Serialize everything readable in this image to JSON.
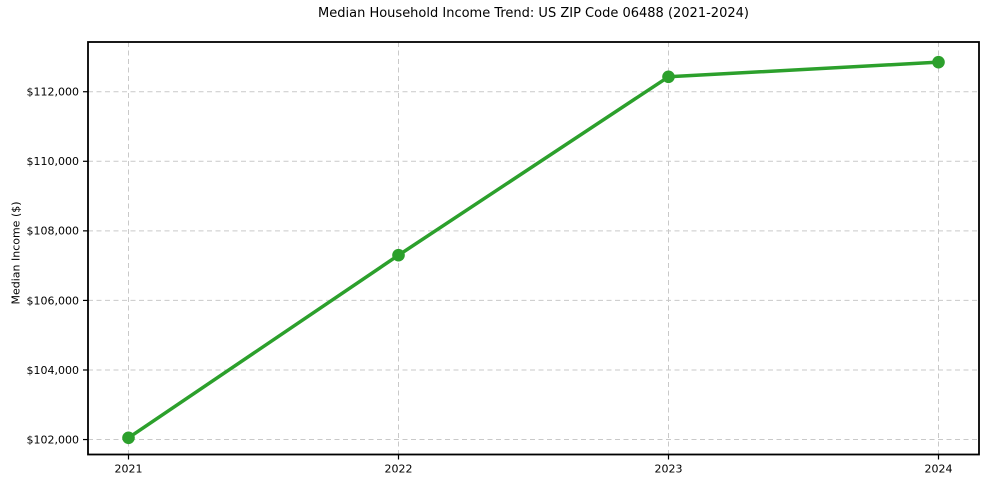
{
  "page": {
    "background": "#ffffff"
  },
  "chart_data": {
    "type": "line",
    "title": "Median Household Income Trend: US ZIP Code 06488 (2021-2024)",
    "xlabel": "",
    "ylabel": "Median Income ($)",
    "x": [
      2021,
      2022,
      2023,
      2024
    ],
    "x_tick_labels": [
      "2021",
      "2022",
      "2023",
      "2024"
    ],
    "values": [
      102050,
      107300,
      112430,
      112850
    ],
    "y_ticks": [
      102000,
      104000,
      106000,
      108000,
      110000,
      112000
    ],
    "y_tick_labels": [
      "$102,000",
      "$104,000",
      "$106,000",
      "$108,000",
      "$110,000",
      "$112,000"
    ],
    "xlim": [
      2020.85,
      2024.15
    ],
    "ylim": [
      101570,
      113430
    ],
    "grid": true,
    "grid_style": "dashed",
    "legend_position": "none",
    "styles": {
      "line_color": "#2ca02c",
      "marker": "circle",
      "marker_radius": 6.3,
      "line_width": 3.5,
      "grid_color": "#c9c9c9",
      "axis_color": "#000000",
      "tick_color": "#000000",
      "text_color": "#000000",
      "background": "#ffffff"
    }
  }
}
